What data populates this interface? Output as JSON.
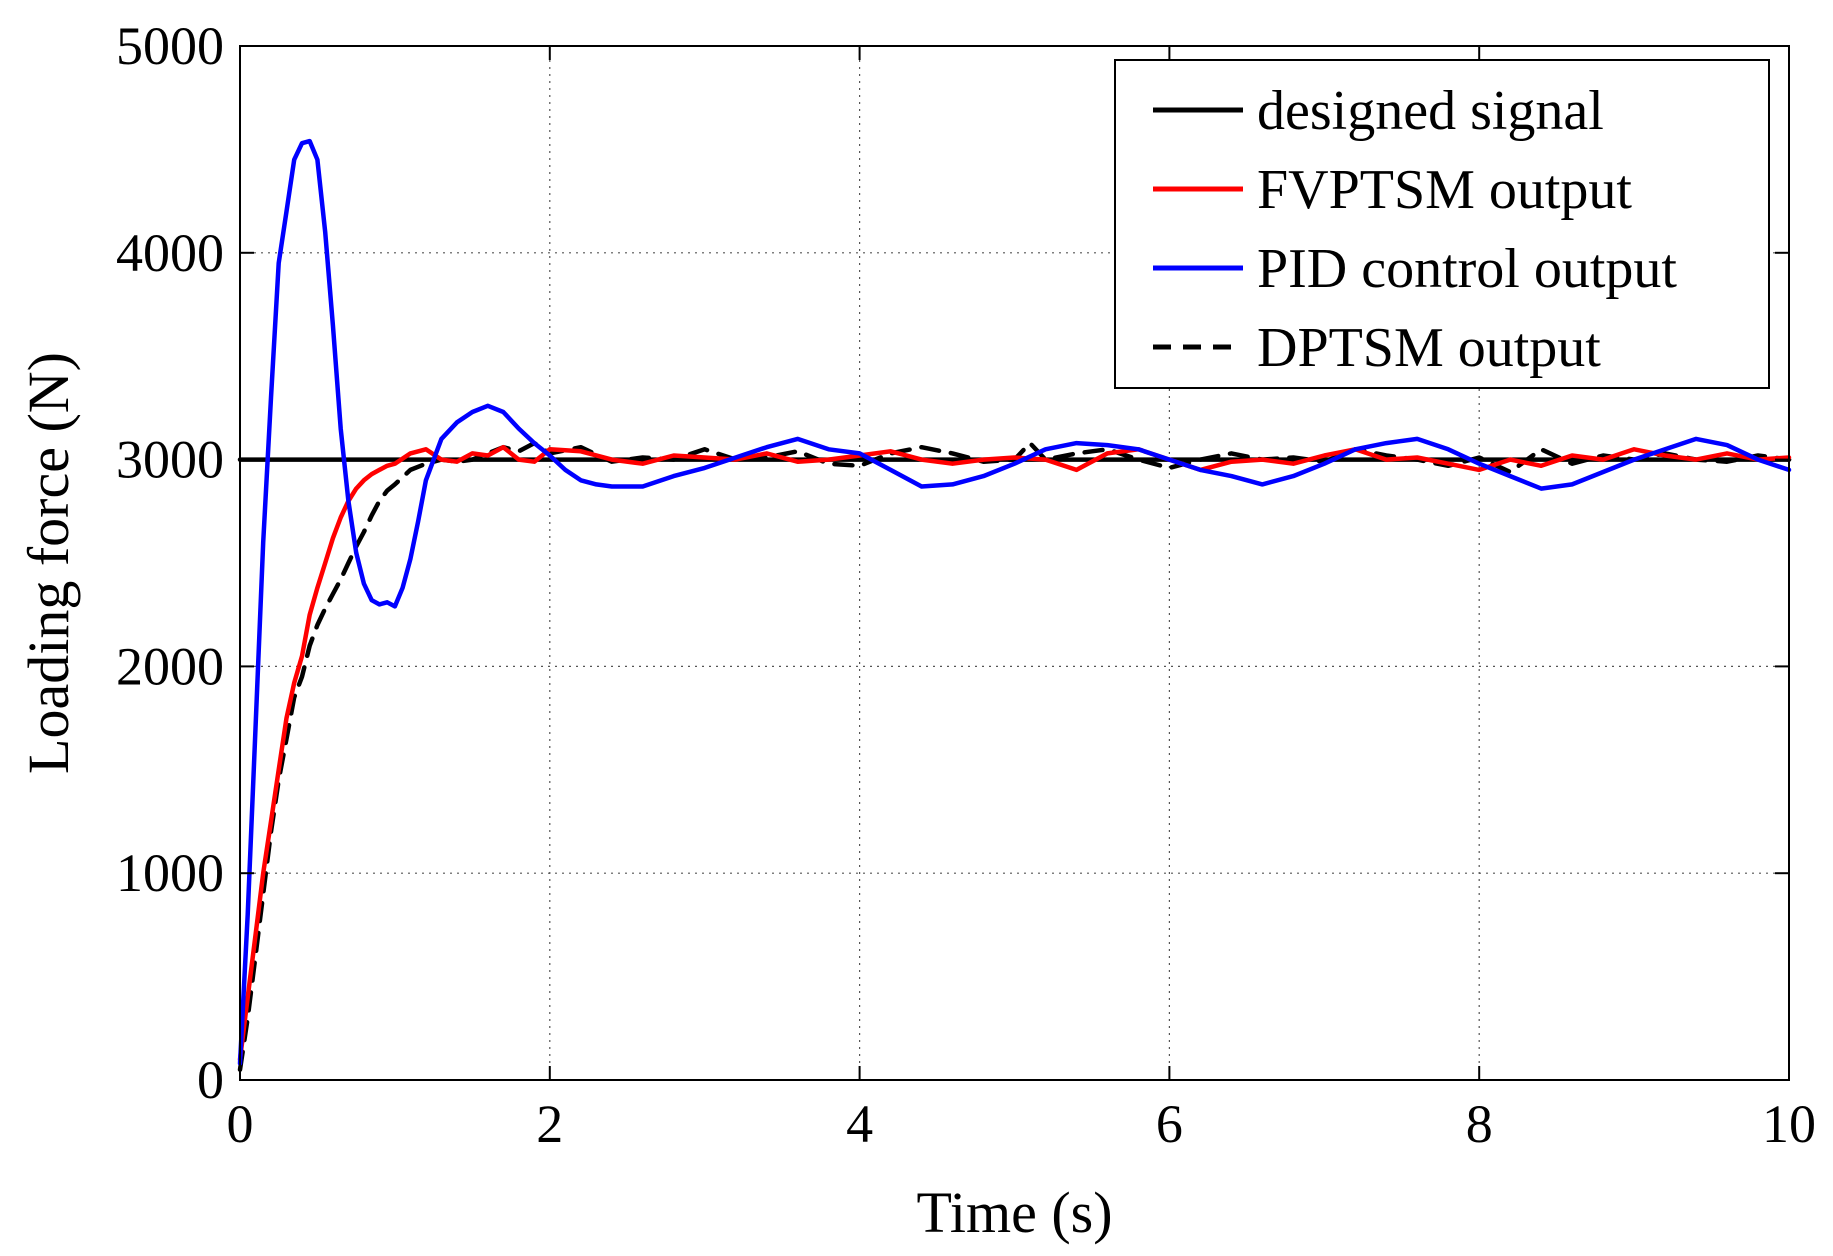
{
  "chart_data": {
    "type": "line",
    "title": "",
    "xlabel": "Time (s)",
    "ylabel": "Loading force (N)",
    "xlim": [
      0,
      10
    ],
    "ylim": [
      0,
      5000
    ],
    "xticks": [
      0,
      2,
      4,
      6,
      8,
      10
    ],
    "yticks": [
      0,
      1000,
      2000,
      3000,
      4000,
      5000
    ],
    "xtick_labels": [
      "0",
      "2",
      "4",
      "6",
      "8",
      "10"
    ],
    "ytick_labels": [
      "0",
      "1000",
      "2000",
      "3000",
      "4000",
      "5000"
    ],
    "grid": true,
    "legend_position": "top-right",
    "series": [
      {
        "name": "designed signal",
        "color": "#000000",
        "style": "solid",
        "x": [
          0,
          10
        ],
        "y": [
          3000,
          3000
        ]
      },
      {
        "name": "FVPTSM output",
        "color": "#ff0000",
        "style": "solid",
        "x": [
          0,
          0.05,
          0.1,
          0.15,
          0.2,
          0.25,
          0.3,
          0.35,
          0.4,
          0.45,
          0.5,
          0.55,
          0.6,
          0.65,
          0.7,
          0.75,
          0.8,
          0.85,
          0.9,
          0.95,
          1.0,
          1.1,
          1.2,
          1.3,
          1.4,
          1.5,
          1.6,
          1.7,
          1.8,
          1.9,
          2.0,
          2.2,
          2.4,
          2.6,
          2.8,
          3.0,
          3.2,
          3.4,
          3.6,
          3.8,
          4.0,
          4.2,
          4.4,
          4.6,
          4.8,
          5.0,
          5.2,
          5.4,
          5.6,
          5.8,
          6.0,
          6.2,
          6.4,
          6.6,
          6.8,
          7.0,
          7.2,
          7.4,
          7.6,
          7.8,
          8.0,
          8.2,
          8.4,
          8.6,
          8.8,
          9.0,
          9.2,
          9.4,
          9.6,
          9.8,
          10.0
        ],
        "y": [
          100,
          400,
          700,
          1000,
          1250,
          1500,
          1750,
          1920,
          2050,
          2250,
          2380,
          2500,
          2620,
          2720,
          2800,
          2860,
          2900,
          2930,
          2950,
          2970,
          2980,
          3030,
          3050,
          3000,
          2990,
          3030,
          3020,
          3060,
          3000,
          2990,
          3050,
          3040,
          3000,
          2980,
          3020,
          3010,
          3000,
          3030,
          2990,
          3000,
          3020,
          3040,
          3000,
          2980,
          3000,
          3010,
          3000,
          2950,
          3030,
          3050,
          3000,
          2950,
          2990,
          3000,
          2980,
          3020,
          3050,
          3000,
          3010,
          2980,
          2950,
          3000,
          2970,
          3020,
          3000,
          3050,
          3020,
          3000,
          3030,
          3000,
          3010
        ]
      },
      {
        "name": "PID control output",
        "color": "#0000ff",
        "style": "solid",
        "x": [
          0,
          0.05,
          0.1,
          0.15,
          0.2,
          0.25,
          0.3,
          0.35,
          0.4,
          0.45,
          0.5,
          0.55,
          0.6,
          0.65,
          0.7,
          0.75,
          0.8,
          0.85,
          0.9,
          0.95,
          1.0,
          1.05,
          1.1,
          1.15,
          1.2,
          1.3,
          1.4,
          1.5,
          1.6,
          1.7,
          1.8,
          1.9,
          2.0,
          2.1,
          2.2,
          2.3,
          2.4,
          2.6,
          2.8,
          3.0,
          3.2,
          3.4,
          3.6,
          3.8,
          4.0,
          4.2,
          4.4,
          4.6,
          4.8,
          5.0,
          5.2,
          5.4,
          5.6,
          5.8,
          6.0,
          6.2,
          6.4,
          6.6,
          6.8,
          7.0,
          7.2,
          7.4,
          7.6,
          7.8,
          8.0,
          8.2,
          8.4,
          8.6,
          8.8,
          9.0,
          9.2,
          9.4,
          9.6,
          9.8,
          10.0
        ],
        "y": [
          80,
          800,
          1700,
          2600,
          3300,
          3950,
          4200,
          4450,
          4530,
          4540,
          4450,
          4100,
          3650,
          3150,
          2800,
          2550,
          2400,
          2320,
          2300,
          2310,
          2290,
          2380,
          2520,
          2700,
          2900,
          3100,
          3180,
          3230,
          3260,
          3230,
          3150,
          3080,
          3020,
          2950,
          2900,
          2880,
          2870,
          2870,
          2920,
          2960,
          3010,
          3060,
          3100,
          3050,
          3030,
          2950,
          2870,
          2880,
          2920,
          2980,
          3050,
          3080,
          3070,
          3050,
          3000,
          2950,
          2920,
          2880,
          2920,
          2980,
          3050,
          3080,
          3100,
          3050,
          2980,
          2920,
          2860,
          2880,
          2940,
          3000,
          3050,
          3100,
          3070,
          3000,
          2950
        ]
      },
      {
        "name": "DPTSM output",
        "color": "#000000",
        "style": "dashed",
        "x": [
          0,
          0.05,
          0.1,
          0.15,
          0.2,
          0.25,
          0.3,
          0.35,
          0.4,
          0.45,
          0.5,
          0.55,
          0.6,
          0.65,
          0.7,
          0.75,
          0.8,
          0.85,
          0.9,
          0.95,
          1.0,
          1.1,
          1.2,
          1.3,
          1.4,
          1.5,
          1.6,
          1.7,
          1.8,
          1.9,
          2.0,
          2.2,
          2.4,
          2.6,
          2.8,
          3.0,
          3.2,
          3.4,
          3.6,
          3.8,
          4.0,
          4.2,
          4.4,
          4.6,
          4.8,
          5.0,
          5.1,
          5.2,
          5.4,
          5.6,
          5.8,
          6.0,
          6.2,
          6.4,
          6.6,
          6.8,
          7.0,
          7.2,
          7.4,
          7.6,
          7.8,
          8.0,
          8.2,
          8.4,
          8.6,
          8.8,
          9.0,
          9.2,
          9.4,
          9.6,
          9.8,
          10.0
        ],
        "y": [
          50,
          300,
          600,
          900,
          1200,
          1450,
          1650,
          1850,
          1950,
          2100,
          2200,
          2280,
          2350,
          2420,
          2500,
          2580,
          2650,
          2730,
          2800,
          2850,
          2880,
          2950,
          2980,
          3000,
          2990,
          3000,
          3030,
          3060,
          3040,
          3080,
          3030,
          3060,
          2990,
          3010,
          3000,
          3050,
          3000,
          3010,
          3040,
          2980,
          2970,
          3030,
          3060,
          3030,
          2990,
          3000,
          3080,
          3000,
          3030,
          3050,
          3000,
          2960,
          3000,
          3030,
          3000,
          3010,
          2990,
          3050,
          3020,
          3000,
          2970,
          3010,
          2940,
          3050,
          2980,
          3020,
          3000,
          3030,
          3000,
          2990,
          3020,
          3000
        ]
      }
    ]
  }
}
